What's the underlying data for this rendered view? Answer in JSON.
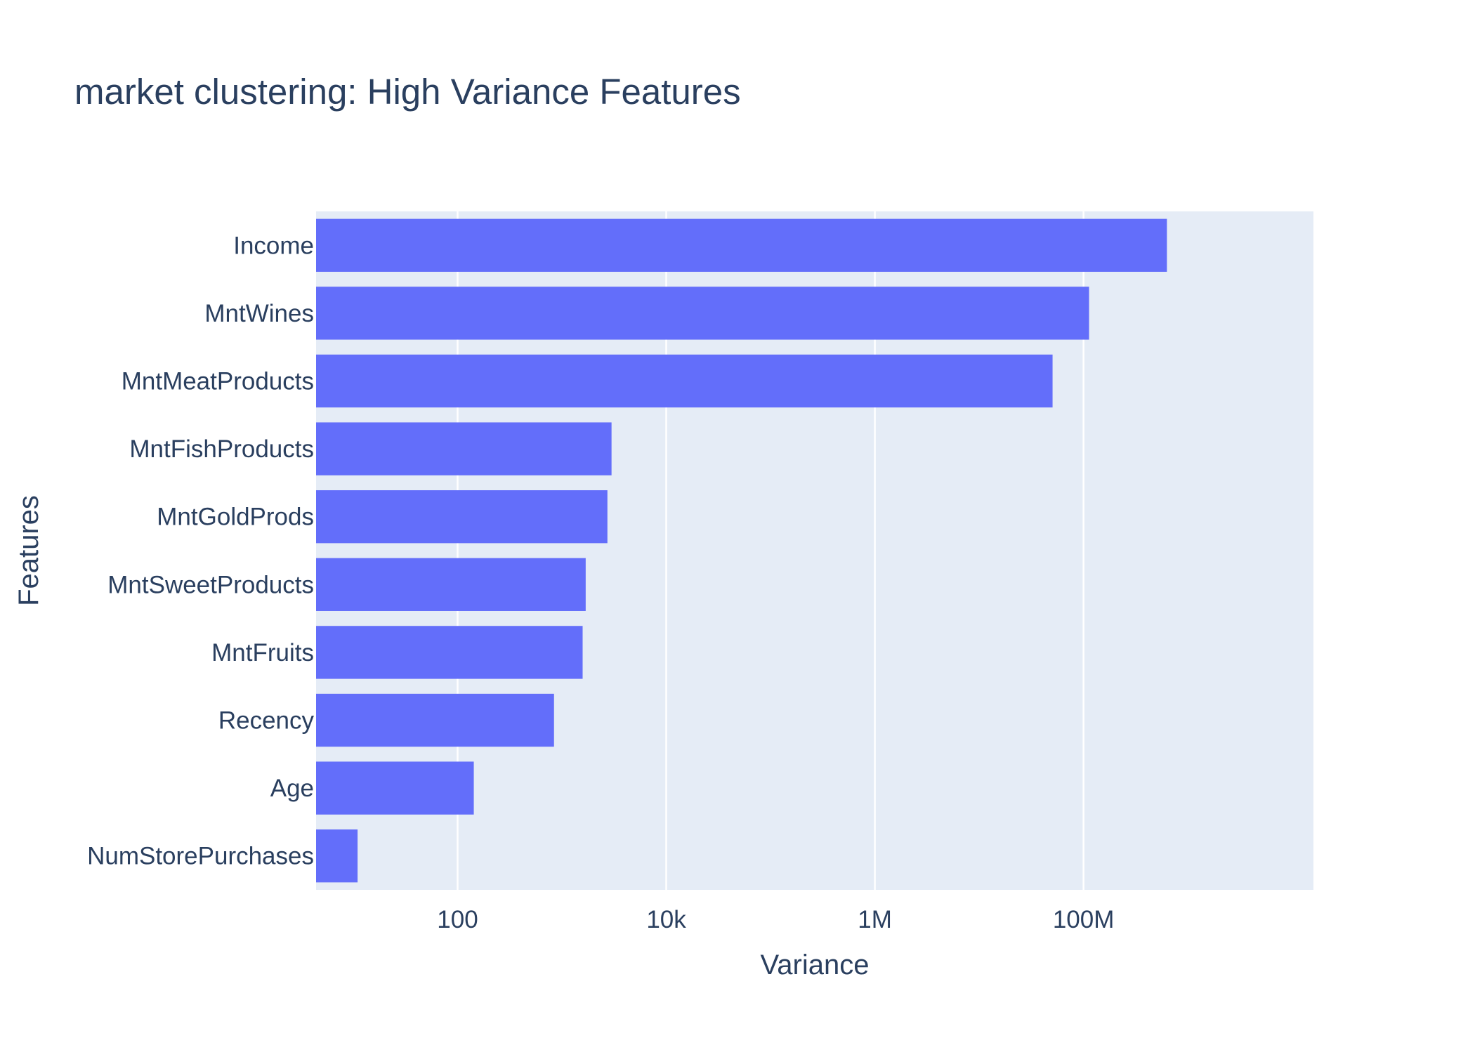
{
  "chart_data": {
    "type": "bar",
    "orientation": "horizontal",
    "title": "market clustering: High Variance Features",
    "xlabel": "Variance",
    "ylabel": "Features",
    "x_scale": "log",
    "xlim": [
      4.4,
      16000000000
    ],
    "x_ticks": [
      {
        "value": 100,
        "label": "100"
      },
      {
        "value": 10000,
        "label": "10k"
      },
      {
        "value": 1000000,
        "label": "1M"
      },
      {
        "value": 100000000,
        "label": "100M"
      }
    ],
    "categories": [
      "Income",
      "MntWines",
      "MntMeatProducts",
      "MntFishProducts",
      "MntGoldProds",
      "MntSweetProducts",
      "MntFruits",
      "Recency",
      "Age",
      "NumStorePurchases"
    ],
    "values": [
      630000000,
      113000000,
      50500000,
      2990,
      2730,
      1690,
      1580,
      840,
      143,
      11
    ],
    "grid": true,
    "legend": "none",
    "colors": {
      "bar": "#636efa",
      "plot_background": "#e5ecf6",
      "gridline": "#ffffff",
      "text": "#2a3f5f"
    }
  }
}
